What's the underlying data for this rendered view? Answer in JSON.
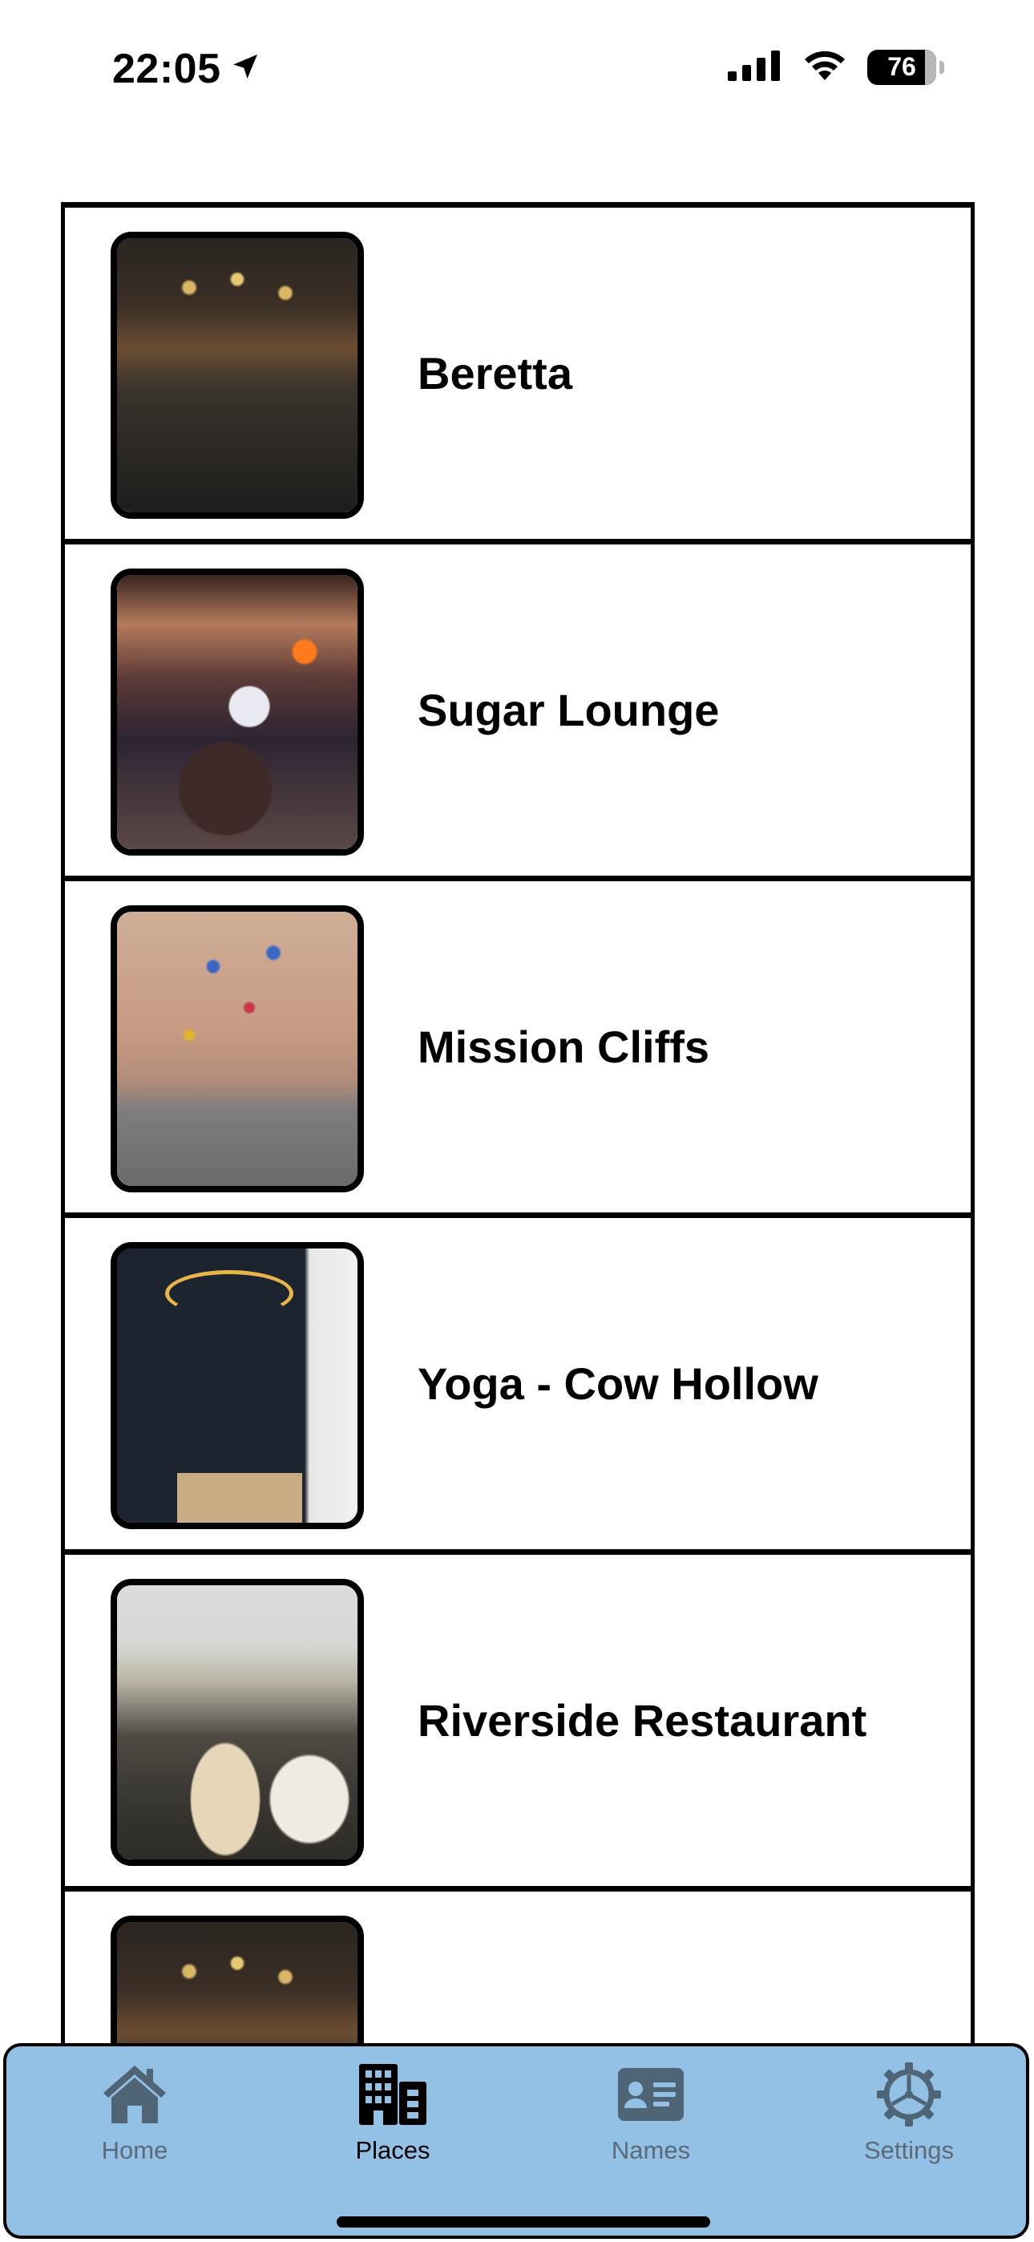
{
  "status_bar": {
    "time": "22:05",
    "battery": "76",
    "icons": [
      "location-arrow-icon",
      "cellular-signal-icon",
      "wifi-icon",
      "battery-icon"
    ]
  },
  "places": [
    {
      "name": "Beretta",
      "photo": "bar-interior-dark"
    },
    {
      "name": "Sugar Lounge",
      "photo": "crowded-bar"
    },
    {
      "name": "Mission Cliffs",
      "photo": "climbing-wall"
    },
    {
      "name": "Yoga - Cow Hollow",
      "photo": "dark-studio"
    },
    {
      "name": "Riverside Restaurant",
      "photo": "restaurant-dining-room"
    },
    {
      "name": "",
      "photo": "bar-interior-dark"
    }
  ],
  "tab_bar": {
    "tabs": [
      {
        "label": "Home",
        "icon": "house-icon",
        "active": false
      },
      {
        "label": "Places",
        "icon": "buildings-icon",
        "active": true
      },
      {
        "label": "Names",
        "icon": "contact-card-icon",
        "active": false
      },
      {
        "label": "Settings",
        "icon": "gear-icon",
        "active": false
      }
    ]
  },
  "colors": {
    "tab_bar_background": "#93c1e6",
    "tab_inactive": "#4f6475",
    "tab_active": "#000000"
  }
}
